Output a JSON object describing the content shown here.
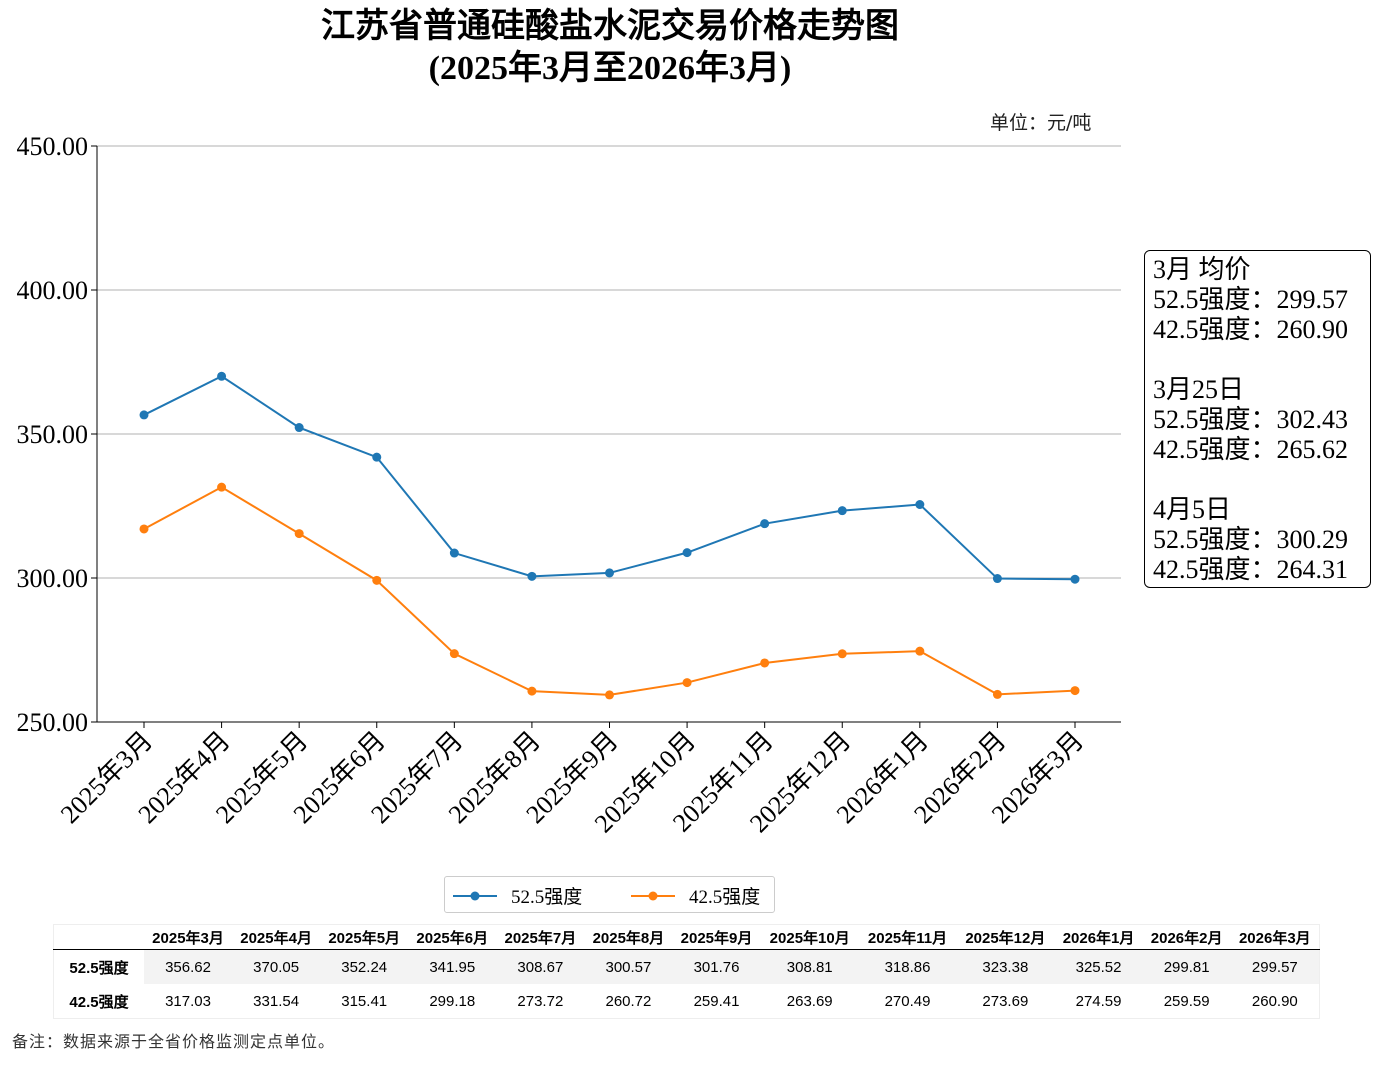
{
  "chart_data": {
    "type": "line",
    "title": "江苏省普通硅酸盐水泥交易价格走势图",
    "subtitle": "(2025年3月至2026年3月)",
    "unit": "单位：元/吨",
    "categories": [
      "2025年3月",
      "2025年4月",
      "2025年5月",
      "2025年6月",
      "2025年7月",
      "2025年8月",
      "2025年9月",
      "2025年10月",
      "2025年11月",
      "2025年12月",
      "2026年1月",
      "2026年2月",
      "2026年3月"
    ],
    "series": [
      {
        "name": "52.5强度",
        "color": "#1f77b4",
        "values": [
          356.62,
          370.05,
          352.24,
          341.95,
          308.67,
          300.57,
          301.76,
          308.81,
          318.86,
          323.38,
          325.52,
          299.81,
          299.57
        ]
      },
      {
        "name": "42.5强度",
        "color": "#ff7f0e",
        "values": [
          317.03,
          331.54,
          315.41,
          299.18,
          273.72,
          260.72,
          259.41,
          263.69,
          270.49,
          273.69,
          274.59,
          259.59,
          260.9
        ]
      }
    ],
    "ylim": [
      250,
      450
    ],
    "yticks": [
      "250.00",
      "300.00",
      "350.00",
      "400.00",
      "450.00"
    ],
    "grid": "horizontal",
    "legend": "bottom-center"
  },
  "annotation": [
    "3月 均价",
    "52.5强度：299.57",
    "42.5强度：260.90",
    "",
    "3月25日",
    "52.5强度：302.43",
    "42.5强度：265.62",
    "",
    "4月5日",
    "52.5强度：300.29",
    "42.5强度：264.31"
  ],
  "note": "备注：数据来源于全省价格监测定点单位。"
}
